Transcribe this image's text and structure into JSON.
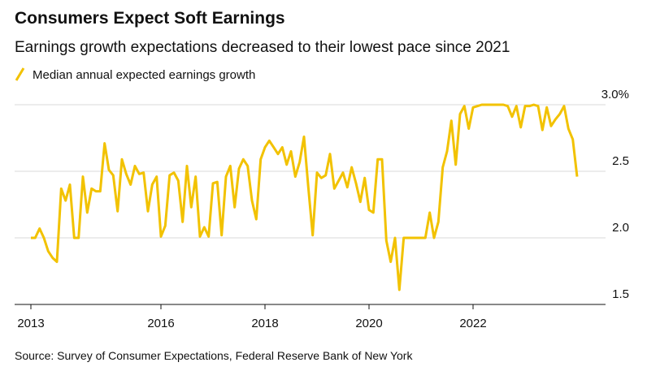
{
  "chart_data": {
    "type": "line",
    "title": "Consumers Expect Soft Earnings",
    "subtitle": "Earnings growth expectations decreased to their lowest pace since 2021",
    "source": "Source: Survey of Consumer Expectations, Federal Reserve Bank of New York",
    "x": [
      2013.5,
      2013.583,
      2013.667,
      2013.75,
      2013.833,
      2013.917,
      2014.0,
      2014.083,
      2014.167,
      2014.25,
      2014.333,
      2014.417,
      2014.5,
      2014.583,
      2014.667,
      2014.75,
      2014.833,
      2014.917,
      2015.0,
      2015.083,
      2015.167,
      2015.25,
      2015.333,
      2015.417,
      2015.5,
      2015.583,
      2015.667,
      2015.75,
      2015.833,
      2015.917,
      2016.0,
      2016.083,
      2016.167,
      2016.25,
      2016.333,
      2016.417,
      2016.5,
      2016.583,
      2016.667,
      2016.75,
      2016.833,
      2016.917,
      2017.0,
      2017.083,
      2017.167,
      2017.25,
      2017.333,
      2017.417,
      2017.5,
      2017.583,
      2017.667,
      2017.75,
      2017.833,
      2017.917,
      2018.0,
      2018.083,
      2018.167,
      2018.25,
      2018.333,
      2018.417,
      2018.5,
      2018.583,
      2018.667,
      2018.75,
      2018.833,
      2018.917,
      2019.0,
      2019.083,
      2019.167,
      2019.25,
      2019.333,
      2019.417,
      2019.5,
      2019.583,
      2019.667,
      2019.75,
      2019.833,
      2019.917,
      2020.0,
      2020.083,
      2020.167,
      2020.25,
      2020.333,
      2020.417,
      2020.5,
      2020.583,
      2020.667,
      2020.75,
      2020.833,
      2020.917,
      2021.0,
      2021.083,
      2021.167,
      2021.25,
      2021.333,
      2021.417,
      2021.5,
      2021.583,
      2021.667,
      2021.75,
      2021.833,
      2021.917,
      2022.0,
      2022.083,
      2022.167,
      2022.25,
      2022.333,
      2022.417,
      2022.5,
      2022.583,
      2022.667,
      2022.75,
      2022.833,
      2022.917,
      2023.0,
      2023.083,
      2023.167,
      2023.25,
      2023.333,
      2023.417,
      2023.5,
      2023.583,
      2023.667,
      2023.75,
      2023.833,
      2023.917,
      2024.0
    ],
    "series": [
      {
        "name": "Median annual expected earnings growth",
        "color": "#f2c200",
        "values": [
          2.0,
          2.0,
          2.07,
          2.0,
          1.9,
          1.85,
          1.82,
          2.37,
          2.28,
          2.4,
          2.0,
          2.0,
          2.46,
          2.19,
          2.37,
          2.35,
          2.35,
          2.71,
          2.51,
          2.47,
          2.2,
          2.59,
          2.48,
          2.4,
          2.54,
          2.48,
          2.49,
          2.2,
          2.4,
          2.46,
          2.01,
          2.09,
          2.47,
          2.49,
          2.43,
          2.12,
          2.54,
          2.23,
          2.46,
          2.01,
          2.08,
          2.01,
          2.41,
          2.42,
          2.02,
          2.46,
          2.54,
          2.23,
          2.52,
          2.59,
          2.54,
          2.28,
          2.14,
          2.59,
          2.68,
          2.73,
          2.68,
          2.63,
          2.68,
          2.55,
          2.65,
          2.46,
          2.57,
          2.76,
          2.38,
          2.02,
          2.49,
          2.45,
          2.47,
          2.63,
          2.37,
          2.43,
          2.49,
          2.38,
          2.53,
          2.41,
          2.27,
          2.45,
          2.21,
          2.19,
          2.59,
          2.59,
          1.98,
          1.82,
          2.0,
          1.61,
          2.0,
          2.0,
          2.0,
          2.0,
          2.0,
          2.0,
          2.19,
          2.0,
          2.12,
          2.53,
          2.65,
          2.88,
          2.55,
          2.93,
          2.99,
          2.82,
          2.98,
          2.99,
          3.0,
          3.0,
          3.0,
          3.0,
          3.0,
          3.0,
          2.99,
          2.91,
          2.99,
          2.83,
          2.99,
          2.99,
          3.0,
          2.99,
          2.81,
          2.98,
          2.84,
          2.89,
          2.93,
          2.99,
          2.82,
          2.74,
          2.46
        ]
      }
    ],
    "xlim": [
      2013.25,
      2024.5
    ],
    "xticks": [
      {
        "value": 2013.5,
        "label": "2013"
      },
      2016,
      2018,
      2020,
      2022
    ],
    "ylim": [
      1.5,
      3.0
    ],
    "yticks": [
      {
        "value": 1.5,
        "label": "1.5"
      },
      {
        "value": 2.0,
        "label": "2.0"
      },
      2.5,
      {
        "value": 3.0,
        "label": "3.0%"
      }
    ],
    "grid": true
  }
}
